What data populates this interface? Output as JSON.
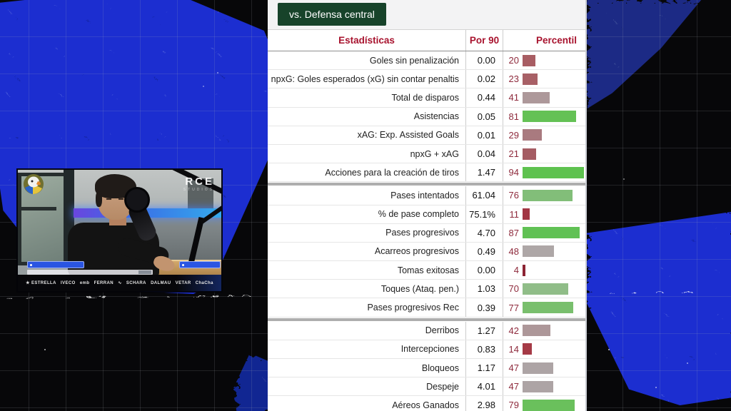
{
  "background": {
    "blue": "#1a2fd0",
    "dark_blue": "#1c2c85",
    "black": "#070709"
  },
  "stats_panel": {
    "filter_button": "vs. Defensa central",
    "button_color": "#17432a",
    "accent_color": "#a8132e",
    "header": {
      "stats": "Estadísticas",
      "per90": "Por 90",
      "percentile": "Percentil"
    },
    "sections": [
      {
        "rows": [
          {
            "label": "Goles sin penalización",
            "per90": "0.00",
            "percentile": 20,
            "bar_color": "#a85d63"
          },
          {
            "label": "npxG: Goles esperados (xG) sin contar penaltis",
            "per90": "0.02",
            "percentile": 23,
            "bar_color": "#a86066"
          },
          {
            "label": "Total de disparos",
            "per90": "0.44",
            "percentile": 41,
            "bar_color": "#ad989a"
          },
          {
            "label": "Asistencias",
            "per90": "0.05",
            "percentile": 81,
            "bar_color": "#64c155"
          },
          {
            "label": "xAG: Exp. Assisted Goals",
            "per90": "0.01",
            "percentile": 29,
            "bar_color": "#a97a7f"
          },
          {
            "label": "npxG + xAG",
            "per90": "0.04",
            "percentile": 21,
            "bar_color": "#a55c63"
          },
          {
            "label": "Acciones para la creación de tiros",
            "per90": "1.47",
            "percentile": 94,
            "bar_color": "#5ec24f"
          }
        ]
      },
      {
        "rows": [
          {
            "label": "Pases intentados",
            "per90": "61.04",
            "percentile": 76,
            "bar_color": "#82be79"
          },
          {
            "label": "% de pase completo",
            "per90": "75.1%",
            "percentile": 11,
            "bar_color": "#a23543"
          },
          {
            "label": "Pases progresivos",
            "per90": "4.70",
            "percentile": 87,
            "bar_color": "#60c154"
          },
          {
            "label": "Acarreos progresivos",
            "per90": "0.49",
            "percentile": 48,
            "bar_color": "#aea7a7"
          },
          {
            "label": "Tomas exitosas",
            "per90": "0.00",
            "percentile": 4,
            "bar_color": "#8c2433"
          },
          {
            "label": "Toques (Ataq. pen.)",
            "per90": "1.03",
            "percentile": 70,
            "bar_color": "#90bd88"
          },
          {
            "label": "Pases progresivos Rec",
            "per90": "0.39",
            "percentile": 77,
            "bar_color": "#79bf6d"
          }
        ]
      },
      {
        "rows": [
          {
            "label": "Derribos",
            "per90": "1.27",
            "percentile": 42,
            "bar_color": "#ad9799"
          },
          {
            "label": "Intercepciones",
            "per90": "0.83",
            "percentile": 14,
            "bar_color": "#a53a46"
          },
          {
            "label": "Bloqueos",
            "per90": "1.17",
            "percentile": 47,
            "bar_color": "#ada4a5"
          },
          {
            "label": "Despeje",
            "per90": "4.01",
            "percentile": 47,
            "bar_color": "#ada4a5"
          },
          {
            "label": "Aéreos Ganados",
            "per90": "2.98",
            "percentile": 79,
            "bar_color": "#6ac05c"
          }
        ]
      }
    ]
  },
  "video": {
    "watermark": "RCE",
    "watermark_sub": "STUDIOS",
    "sponsors": [
      "★ ESTRELLA",
      "IVECO",
      "emb",
      "FERRAN",
      "∿",
      "SCHARA",
      "DALMAU",
      "VETAR",
      "ChaCha"
    ]
  }
}
